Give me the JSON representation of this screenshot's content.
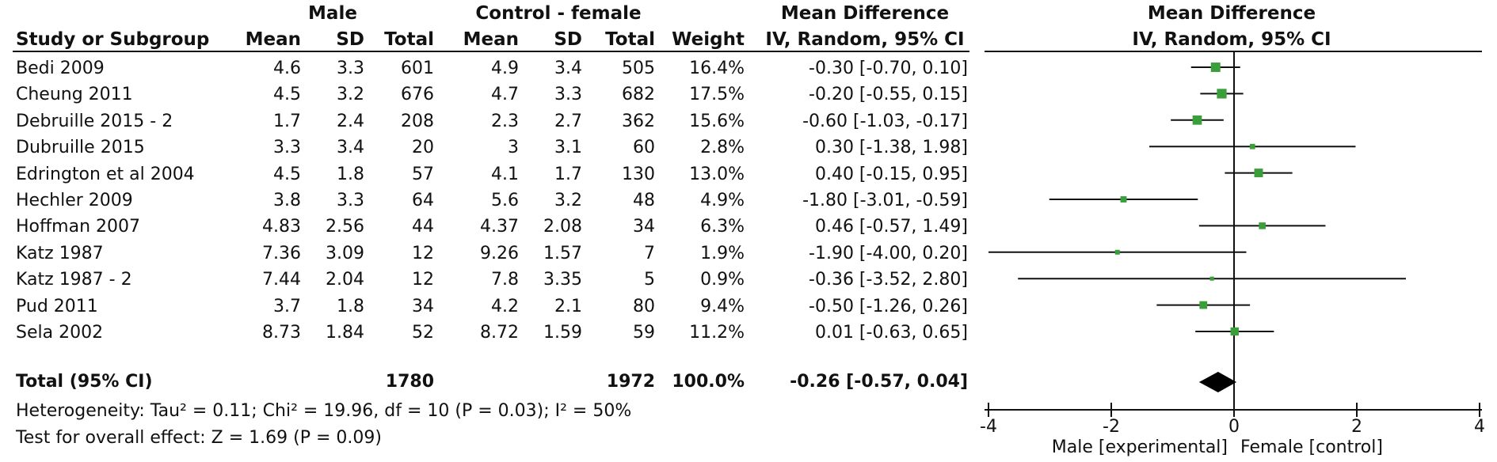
{
  "headers": {
    "group_male": "Male",
    "group_control": "Control - female",
    "md_title": "Mean Difference",
    "md_method": "IV, Random, 95% CI",
    "plot_title": "Mean Difference",
    "plot_method": "IV, Random, 95% CI",
    "study": "Study or Subgroup",
    "mean1": "Mean",
    "sd1": "SD",
    "total1": "Total",
    "mean2": "Mean",
    "sd2": "SD",
    "total2": "Total",
    "weight": "Weight"
  },
  "studies": [
    {
      "name": "Bedi 2009",
      "m1": "4.6",
      "sd1": "3.3",
      "n1": "601",
      "m2": "4.9",
      "sd2": "3.4",
      "n2": "505",
      "weight": "16.4%",
      "ci_text": "-0.30 [-0.70, 0.10]"
    },
    {
      "name": "Cheung 2011",
      "m1": "4.5",
      "sd1": "3.2",
      "n1": "676",
      "m2": "4.7",
      "sd2": "3.3",
      "n2": "682",
      "weight": "17.5%",
      "ci_text": "-0.20 [-0.55, 0.15]"
    },
    {
      "name": "Debruille 2015 - 2",
      "m1": "1.7",
      "sd1": "2.4",
      "n1": "208",
      "m2": "2.3",
      "sd2": "2.7",
      "n2": "362",
      "weight": "15.6%",
      "ci_text": "-0.60 [-1.03, -0.17]"
    },
    {
      "name": "Dubruille 2015",
      "m1": "3.3",
      "sd1": "3.4",
      "n1": "20",
      "m2": "3",
      "sd2": "3.1",
      "n2": "60",
      "weight": "2.8%",
      "ci_text": "0.30 [-1.38, 1.98]"
    },
    {
      "name": "Edrington et al 2004",
      "m1": "4.5",
      "sd1": "1.8",
      "n1": "57",
      "m2": "4.1",
      "sd2": "1.7",
      "n2": "130",
      "weight": "13.0%",
      "ci_text": "0.40 [-0.15, 0.95]"
    },
    {
      "name": "Hechler 2009",
      "m1": "3.8",
      "sd1": "3.3",
      "n1": "64",
      "m2": "5.6",
      "sd2": "3.2",
      "n2": "48",
      "weight": "4.9%",
      "ci_text": "-1.80 [-3.01, -0.59]"
    },
    {
      "name": "Hoffman 2007",
      "m1": "4.83",
      "sd1": "2.56",
      "n1": "44",
      "m2": "4.37",
      "sd2": "2.08",
      "n2": "34",
      "weight": "6.3%",
      "ci_text": "0.46 [-0.57, 1.49]"
    },
    {
      "name": "Katz 1987",
      "m1": "7.36",
      "sd1": "3.09",
      "n1": "12",
      "m2": "9.26",
      "sd2": "1.57",
      "n2": "7",
      "weight": "1.9%",
      "ci_text": "-1.90 [-4.00, 0.20]"
    },
    {
      "name": "Katz 1987 - 2",
      "m1": "7.44",
      "sd1": "2.04",
      "n1": "12",
      "m2": "7.8",
      "sd2": "3.35",
      "n2": "5",
      "weight": "0.9%",
      "ci_text": "-0.36 [-3.52, 2.80]"
    },
    {
      "name": "Pud 2011",
      "m1": "3.7",
      "sd1": "1.8",
      "n1": "34",
      "m2": "4.2",
      "sd2": "2.1",
      "n2": "80",
      "weight": "9.4%",
      "ci_text": "-0.50 [-1.26, 0.26]"
    },
    {
      "name": "Sela 2002",
      "m1": "8.73",
      "sd1": "1.84",
      "n1": "52",
      "m2": "8.72",
      "sd2": "1.59",
      "n2": "59",
      "weight": "11.2%",
      "ci_text": "0.01 [-0.63, 0.65]"
    }
  ],
  "total": {
    "label": "Total (95% CI)",
    "n1": "1780",
    "n2": "1972",
    "weight": "100.0%",
    "ci_text": "-0.26 [-0.57, 0.04]"
  },
  "footer": {
    "heterogeneity": "Heterogeneity: Tau² = 0.11; Chi² = 19.96, df = 10 (P = 0.03); I² = 50%",
    "overall": "Test for overall effect: Z = 1.69 (P = 0.09)"
  },
  "colors": {
    "marker": "#3a9e3a",
    "line": "#111111"
  },
  "chart_data": {
    "type": "forest",
    "title": "Mean Difference",
    "subtitle": "IV, Random, 95% CI",
    "xlabel_left": "Male [experimental]",
    "xlabel_right": "Female [control]",
    "xlim": [
      -4,
      4
    ],
    "ticks": [
      -4,
      -2,
      0,
      2,
      4
    ],
    "tick_labels": [
      "-4",
      "-2",
      "0",
      "2",
      "4"
    ],
    "studies": [
      {
        "name": "Bedi 2009",
        "md": -0.3,
        "lo": -0.7,
        "hi": 0.1,
        "weight": 16.4
      },
      {
        "name": "Cheung 2011",
        "md": -0.2,
        "lo": -0.55,
        "hi": 0.15,
        "weight": 17.5
      },
      {
        "name": "Debruille 2015 - 2",
        "md": -0.6,
        "lo": -1.03,
        "hi": -0.17,
        "weight": 15.6
      },
      {
        "name": "Dubruille 2015",
        "md": 0.3,
        "lo": -1.38,
        "hi": 1.98,
        "weight": 2.8
      },
      {
        "name": "Edrington et al 2004",
        "md": 0.4,
        "lo": -0.15,
        "hi": 0.95,
        "weight": 13.0
      },
      {
        "name": "Hechler 2009",
        "md": -1.8,
        "lo": -3.01,
        "hi": -0.59,
        "weight": 4.9
      },
      {
        "name": "Hoffman 2007",
        "md": 0.46,
        "lo": -0.57,
        "hi": 1.49,
        "weight": 6.3
      },
      {
        "name": "Katz 1987",
        "md": -1.9,
        "lo": -4.0,
        "hi": 0.2,
        "weight": 1.9
      },
      {
        "name": "Katz 1987 - 2",
        "md": -0.36,
        "lo": -3.52,
        "hi": 2.8,
        "weight": 0.9
      },
      {
        "name": "Pud 2011",
        "md": -0.5,
        "lo": -1.26,
        "hi": 0.26,
        "weight": 9.4
      },
      {
        "name": "Sela 2002",
        "md": 0.01,
        "lo": -0.63,
        "hi": 0.65,
        "weight": 11.2
      }
    ],
    "pooled": {
      "md": -0.26,
      "lo": -0.57,
      "hi": 0.04
    }
  }
}
